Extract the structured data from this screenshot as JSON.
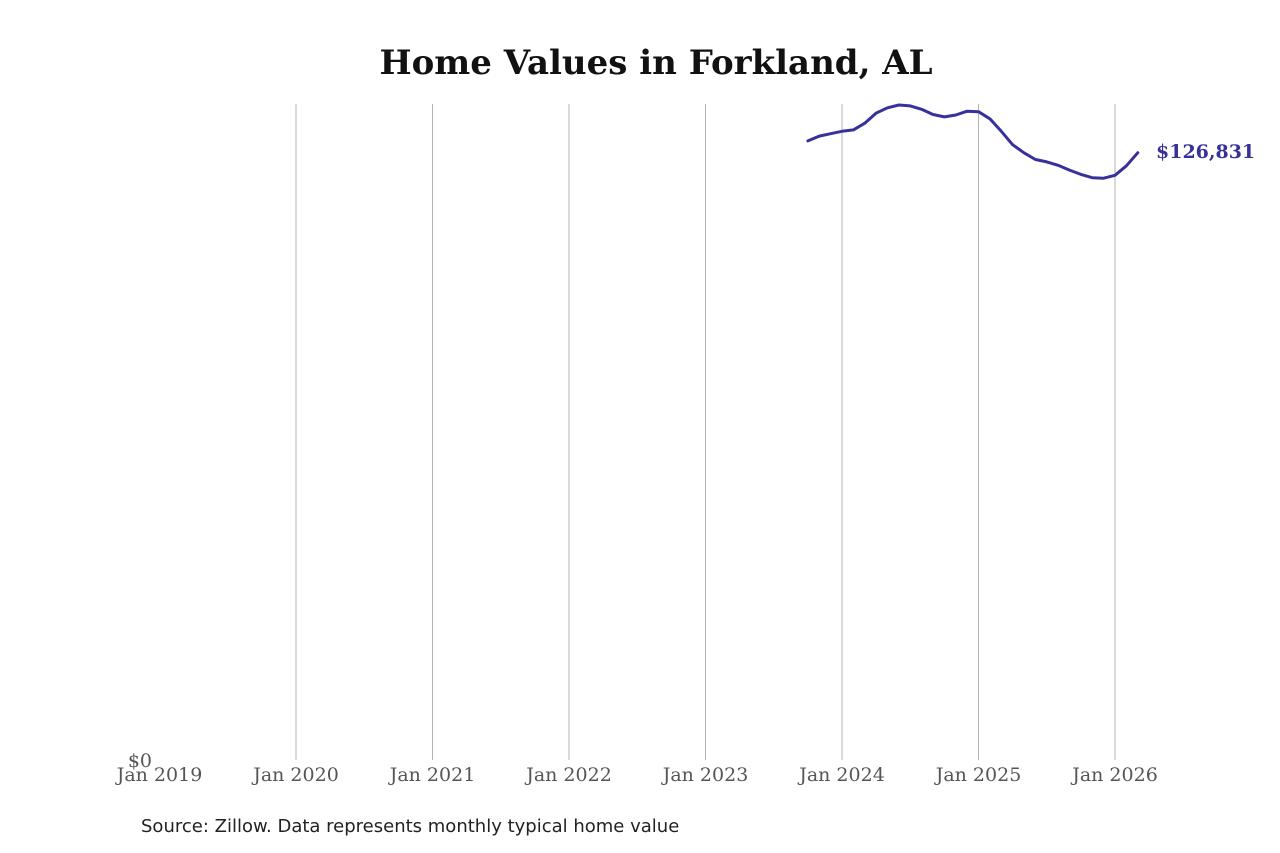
{
  "chart_data": {
    "type": "line",
    "title": "Home Values in Forkland, AL",
    "xlabel": "",
    "ylabel": "",
    "x_ticks": [
      "Jan 2019",
      "Jan 2020",
      "Jan 2021",
      "Jan 2022",
      "Jan 2023",
      "Jan 2024",
      "Jan 2025",
      "Jan 2026"
    ],
    "y_ticks": [
      "$0"
    ],
    "xlim": [
      "2019-01",
      "2026-03"
    ],
    "ylim": [
      0,
      137000
    ],
    "grid": "vertical",
    "legend": "none",
    "series": [
      {
        "color": "#37319a",
        "points": [
          {
            "x": "2023-10",
            "y": 129300
          },
          {
            "x": "2023-11",
            "y": 130300
          },
          {
            "x": "2023-12",
            "y": 130800
          },
          {
            "x": "2024-01",
            "y": 131300
          },
          {
            "x": "2024-02",
            "y": 131600
          },
          {
            "x": "2024-03",
            "y": 133000
          },
          {
            "x": "2024-04",
            "y": 135100
          },
          {
            "x": "2024-05",
            "y": 136200
          },
          {
            "x": "2024-06",
            "y": 136800
          },
          {
            "x": "2024-07",
            "y": 136600
          },
          {
            "x": "2024-08",
            "y": 135900
          },
          {
            "x": "2024-09",
            "y": 134800
          },
          {
            "x": "2024-10",
            "y": 134300
          },
          {
            "x": "2024-11",
            "y": 134700
          },
          {
            "x": "2024-12",
            "y": 135500
          },
          {
            "x": "2025-01",
            "y": 135400
          },
          {
            "x": "2025-02",
            "y": 133900
          },
          {
            "x": "2025-03",
            "y": 131300
          },
          {
            "x": "2025-04",
            "y": 128500
          },
          {
            "x": "2025-05",
            "y": 126800
          },
          {
            "x": "2025-06",
            "y": 125400
          },
          {
            "x": "2025-07",
            "y": 124900
          },
          {
            "x": "2025-08",
            "y": 124200
          },
          {
            "x": "2025-09",
            "y": 123200
          },
          {
            "x": "2025-10",
            "y": 122300
          },
          {
            "x": "2025-11",
            "y": 121600
          },
          {
            "x": "2025-12",
            "y": 121500
          },
          {
            "x": "2026-01",
            "y": 122100
          },
          {
            "x": "2026-02",
            "y": 124100
          },
          {
            "x": "2026-03",
            "y": 126831
          }
        ]
      }
    ],
    "end_label": "$126,831"
  },
  "source_note": "Source: Zillow. Data represents monthly typical home value"
}
